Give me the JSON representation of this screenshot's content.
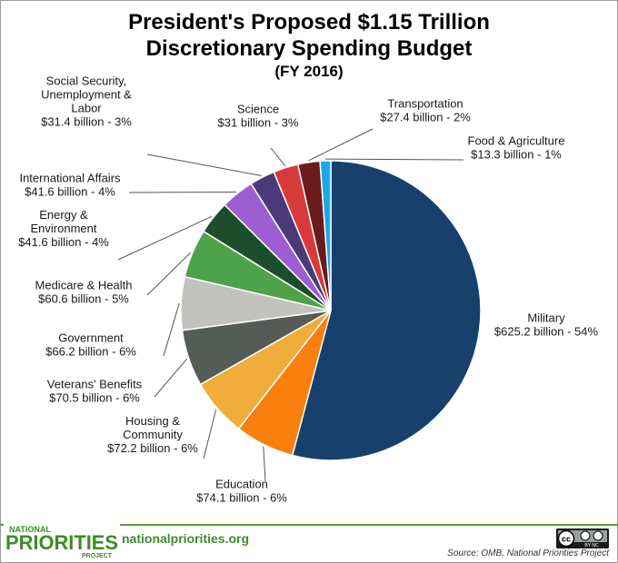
{
  "header": {
    "title_line1": "President's Proposed $1.15 Trillion",
    "title_line2": "Discretionary Spending Budget",
    "title_line3": "(FY 2016)"
  },
  "chart_data": {
    "type": "pie",
    "title": "President's Proposed $1.15 Trillion Discretionary Spending Budget (FY 2016)",
    "unit": "billion",
    "slices": [
      {
        "name": "Military",
        "value": 625.2,
        "percent": 54,
        "color": "#17406d",
        "label_lines": [
          "Military",
          "$625.2 billion - 54%"
        ]
      },
      {
        "name": "Education",
        "value": 74.1,
        "percent": 6,
        "color": "#f97f0f",
        "label_lines": [
          "Education",
          "$74.1 billion - 6%"
        ]
      },
      {
        "name": "Housing & Community",
        "value": 72.2,
        "percent": 6,
        "color": "#f0ad3b",
        "label_lines": [
          "Housing &",
          "Community",
          "$72.2 billion - 6%"
        ]
      },
      {
        "name": "Veterans' Benefits",
        "value": 70.5,
        "percent": 6,
        "color": "#555b56",
        "label_lines": [
          "Veterans' Benefits",
          "$70.5 billion - 6%"
        ]
      },
      {
        "name": "Government",
        "value": 66.2,
        "percent": 6,
        "color": "#c2c2bf",
        "label_lines": [
          "Government",
          "$66.2 billion - 6%"
        ]
      },
      {
        "name": "Medicare & Health",
        "value": 60.6,
        "percent": 5,
        "color": "#4ea34a",
        "label_lines": [
          "Medicare & Health",
          "$60.6 billion - 5%"
        ]
      },
      {
        "name": "Energy & Environment",
        "value": 41.6,
        "percent": 4,
        "color": "#1e4d2b",
        "label_lines": [
          "Energy &",
          "Environment",
          "$41.6 billion - 4%"
        ]
      },
      {
        "name": "International Affairs",
        "value": 41.6,
        "percent": 4,
        "color": "#9b5fd3",
        "label_lines": [
          "International Affairs",
          "$41.6 billion - 4%"
        ]
      },
      {
        "name": "Social Security, Unemployment & Labor",
        "value": 31.4,
        "percent": 3,
        "color": "#4b3a7a",
        "label_lines": [
          "Social Security,",
          "Unemployment &",
          "Labor",
          "$31.4 billion - 3%"
        ]
      },
      {
        "name": "Science",
        "value": 31,
        "percent": 3,
        "color": "#d83a3a",
        "label_lines": [
          "Science",
          "$31 billion - 3%"
        ]
      },
      {
        "name": "Transportation",
        "value": 27.4,
        "percent": 2,
        "color": "#6b1a1d",
        "label_lines": [
          "Transportation",
          "$27.4 billion - 2%"
        ]
      },
      {
        "name": "Food & Agriculture",
        "value": 13.3,
        "percent": 1,
        "color": "#1aa9e8",
        "label_lines": [
          "Food & Agriculture",
          "$13.3 billion - 1%"
        ]
      }
    ]
  },
  "footer": {
    "logo_line1": "NATIONAL",
    "logo_line2": "PRIORITIES",
    "logo_line3": "PROJECT",
    "site": "nationalpriorities.org",
    "source": "Source: OMB, National Priorities Project",
    "cc_text": "BY  NC"
  }
}
